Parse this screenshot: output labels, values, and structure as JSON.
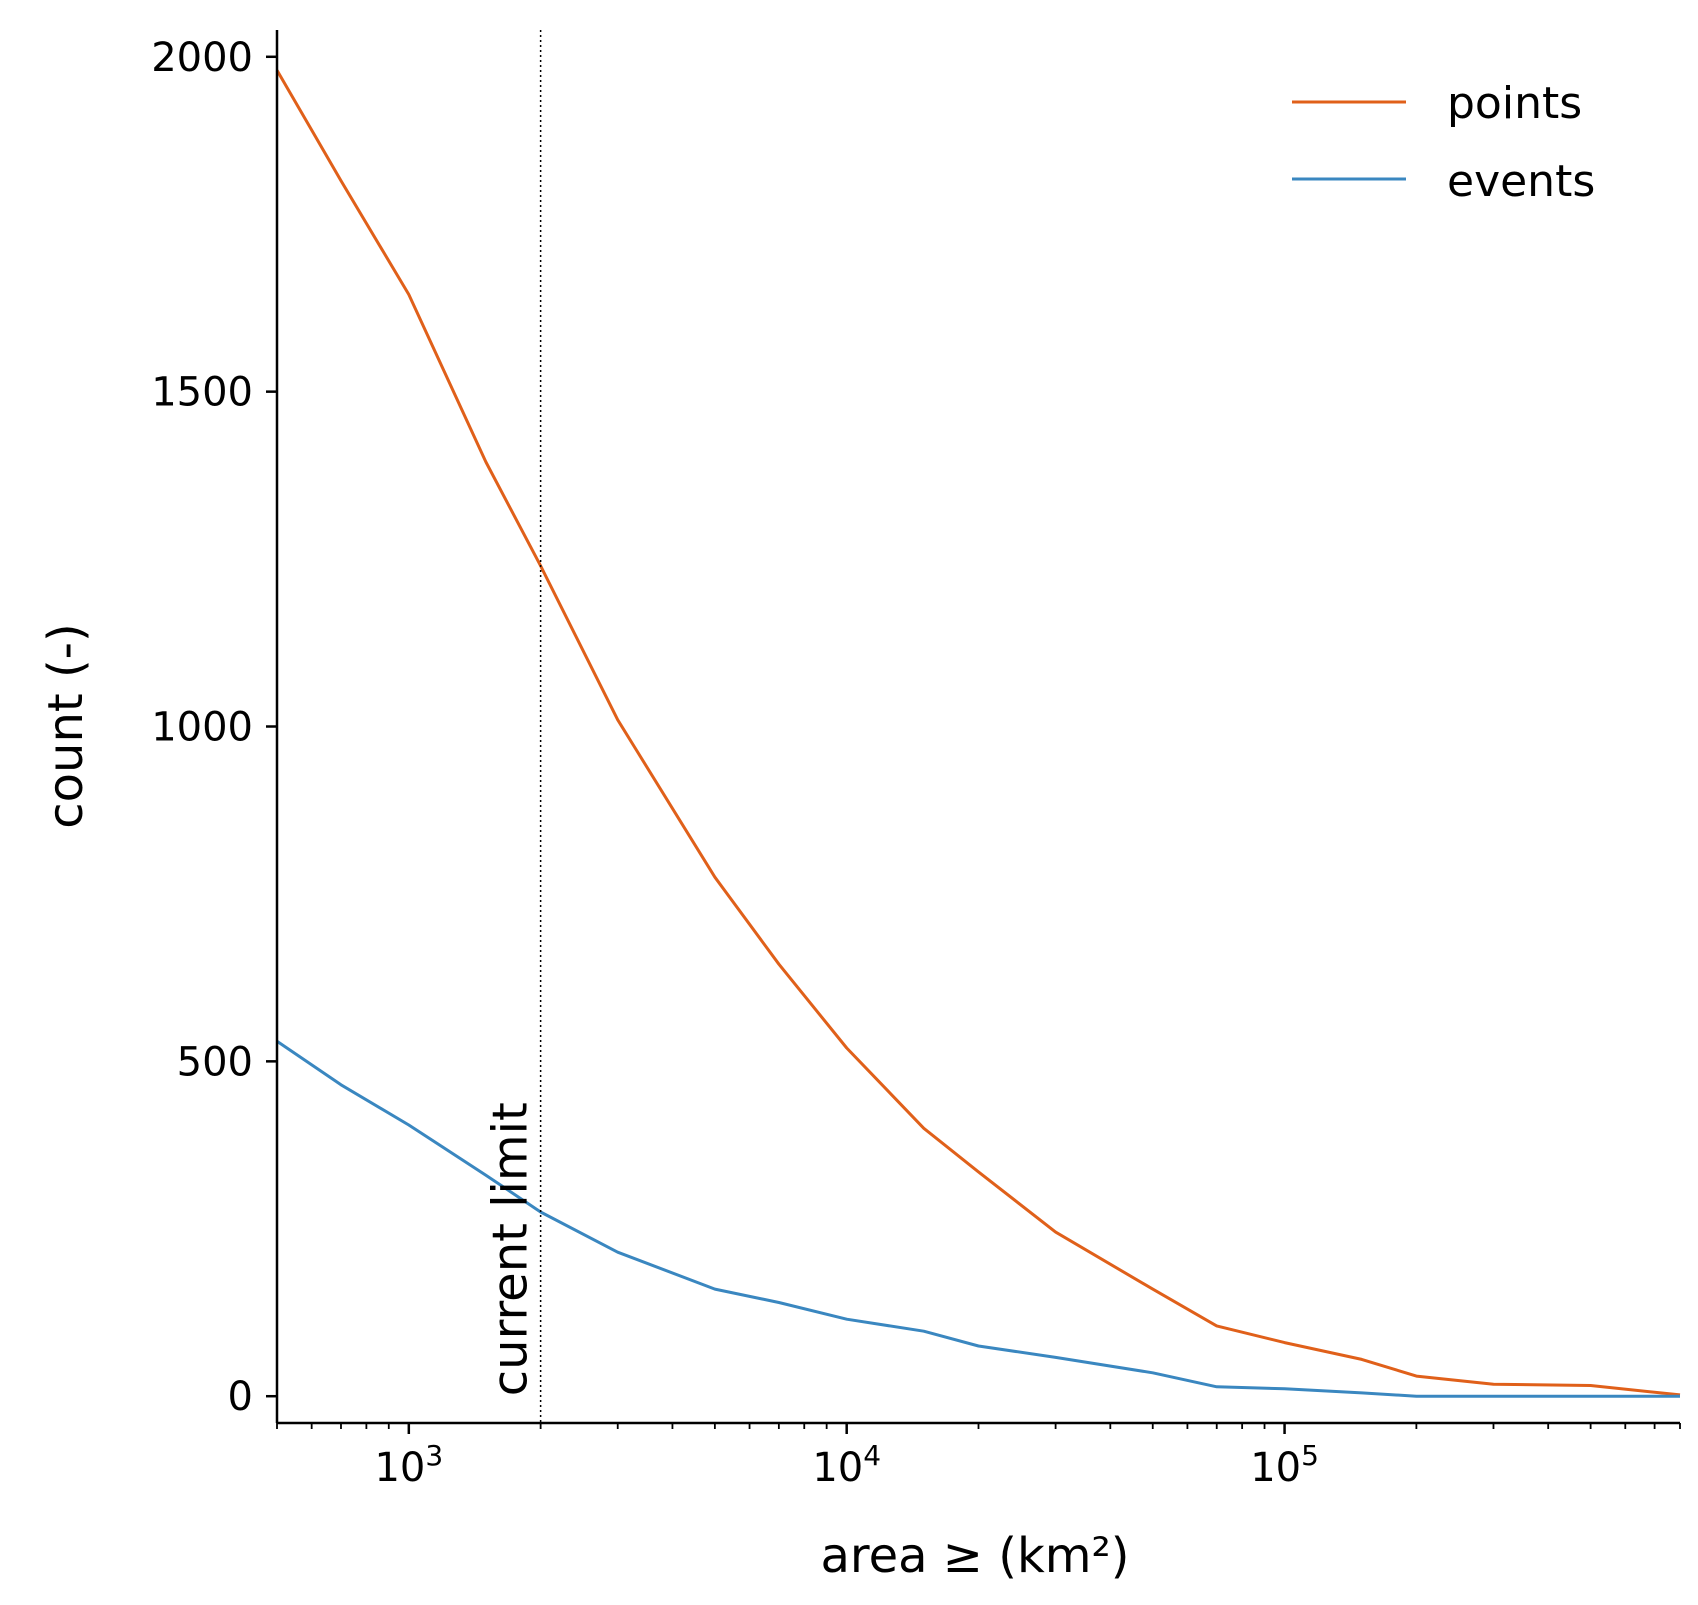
{
  "chart_data": {
    "type": "line",
    "xscale": "log",
    "xlabel": "area ≥ (km²)",
    "ylabel": "count (-)",
    "xlim": [
      500,
      800000
    ],
    "ylim": [
      -40,
      2040
    ],
    "yticks": [
      0,
      500,
      1000,
      1500,
      2000
    ],
    "xticks": [
      {
        "value": 1000,
        "base": "10",
        "exp": "3"
      },
      {
        "value": 10000,
        "base": "10",
        "exp": "4"
      },
      {
        "value": 100000,
        "base": "10",
        "exp": "5"
      }
    ],
    "legend": {
      "position": "top-right"
    },
    "grid": false,
    "series": [
      {
        "name": "points",
        "color": "#e0601a",
        "x": [
          500,
          700,
          1000,
          1500,
          2000,
          3000,
          5000,
          7000,
          10000,
          15000,
          20000,
          30000,
          50000,
          70000,
          100000,
          150000,
          200000,
          300000,
          500000,
          800000
        ],
        "y": [
          1980,
          1815,
          1645,
          1395,
          1240,
          1010,
          775,
          645,
          520,
          400,
          335,
          245,
          160,
          105,
          80,
          55,
          30,
          18,
          16,
          2
        ]
      },
      {
        "name": "events",
        "color": "#3a87c0",
        "x": [
          500,
          700,
          1000,
          1500,
          2000,
          3000,
          5000,
          7000,
          10000,
          15000,
          20000,
          30000,
          50000,
          70000,
          100000,
          150000,
          200000,
          300000,
          500000,
          800000
        ],
        "y": [
          530,
          465,
          405,
          330,
          275,
          215,
          160,
          140,
          115,
          97,
          75,
          58,
          35,
          14,
          11,
          5,
          0,
          0,
          0,
          0
        ]
      }
    ],
    "annotations": [
      {
        "type": "vline",
        "x": 2000,
        "label": "current limit"
      }
    ]
  }
}
